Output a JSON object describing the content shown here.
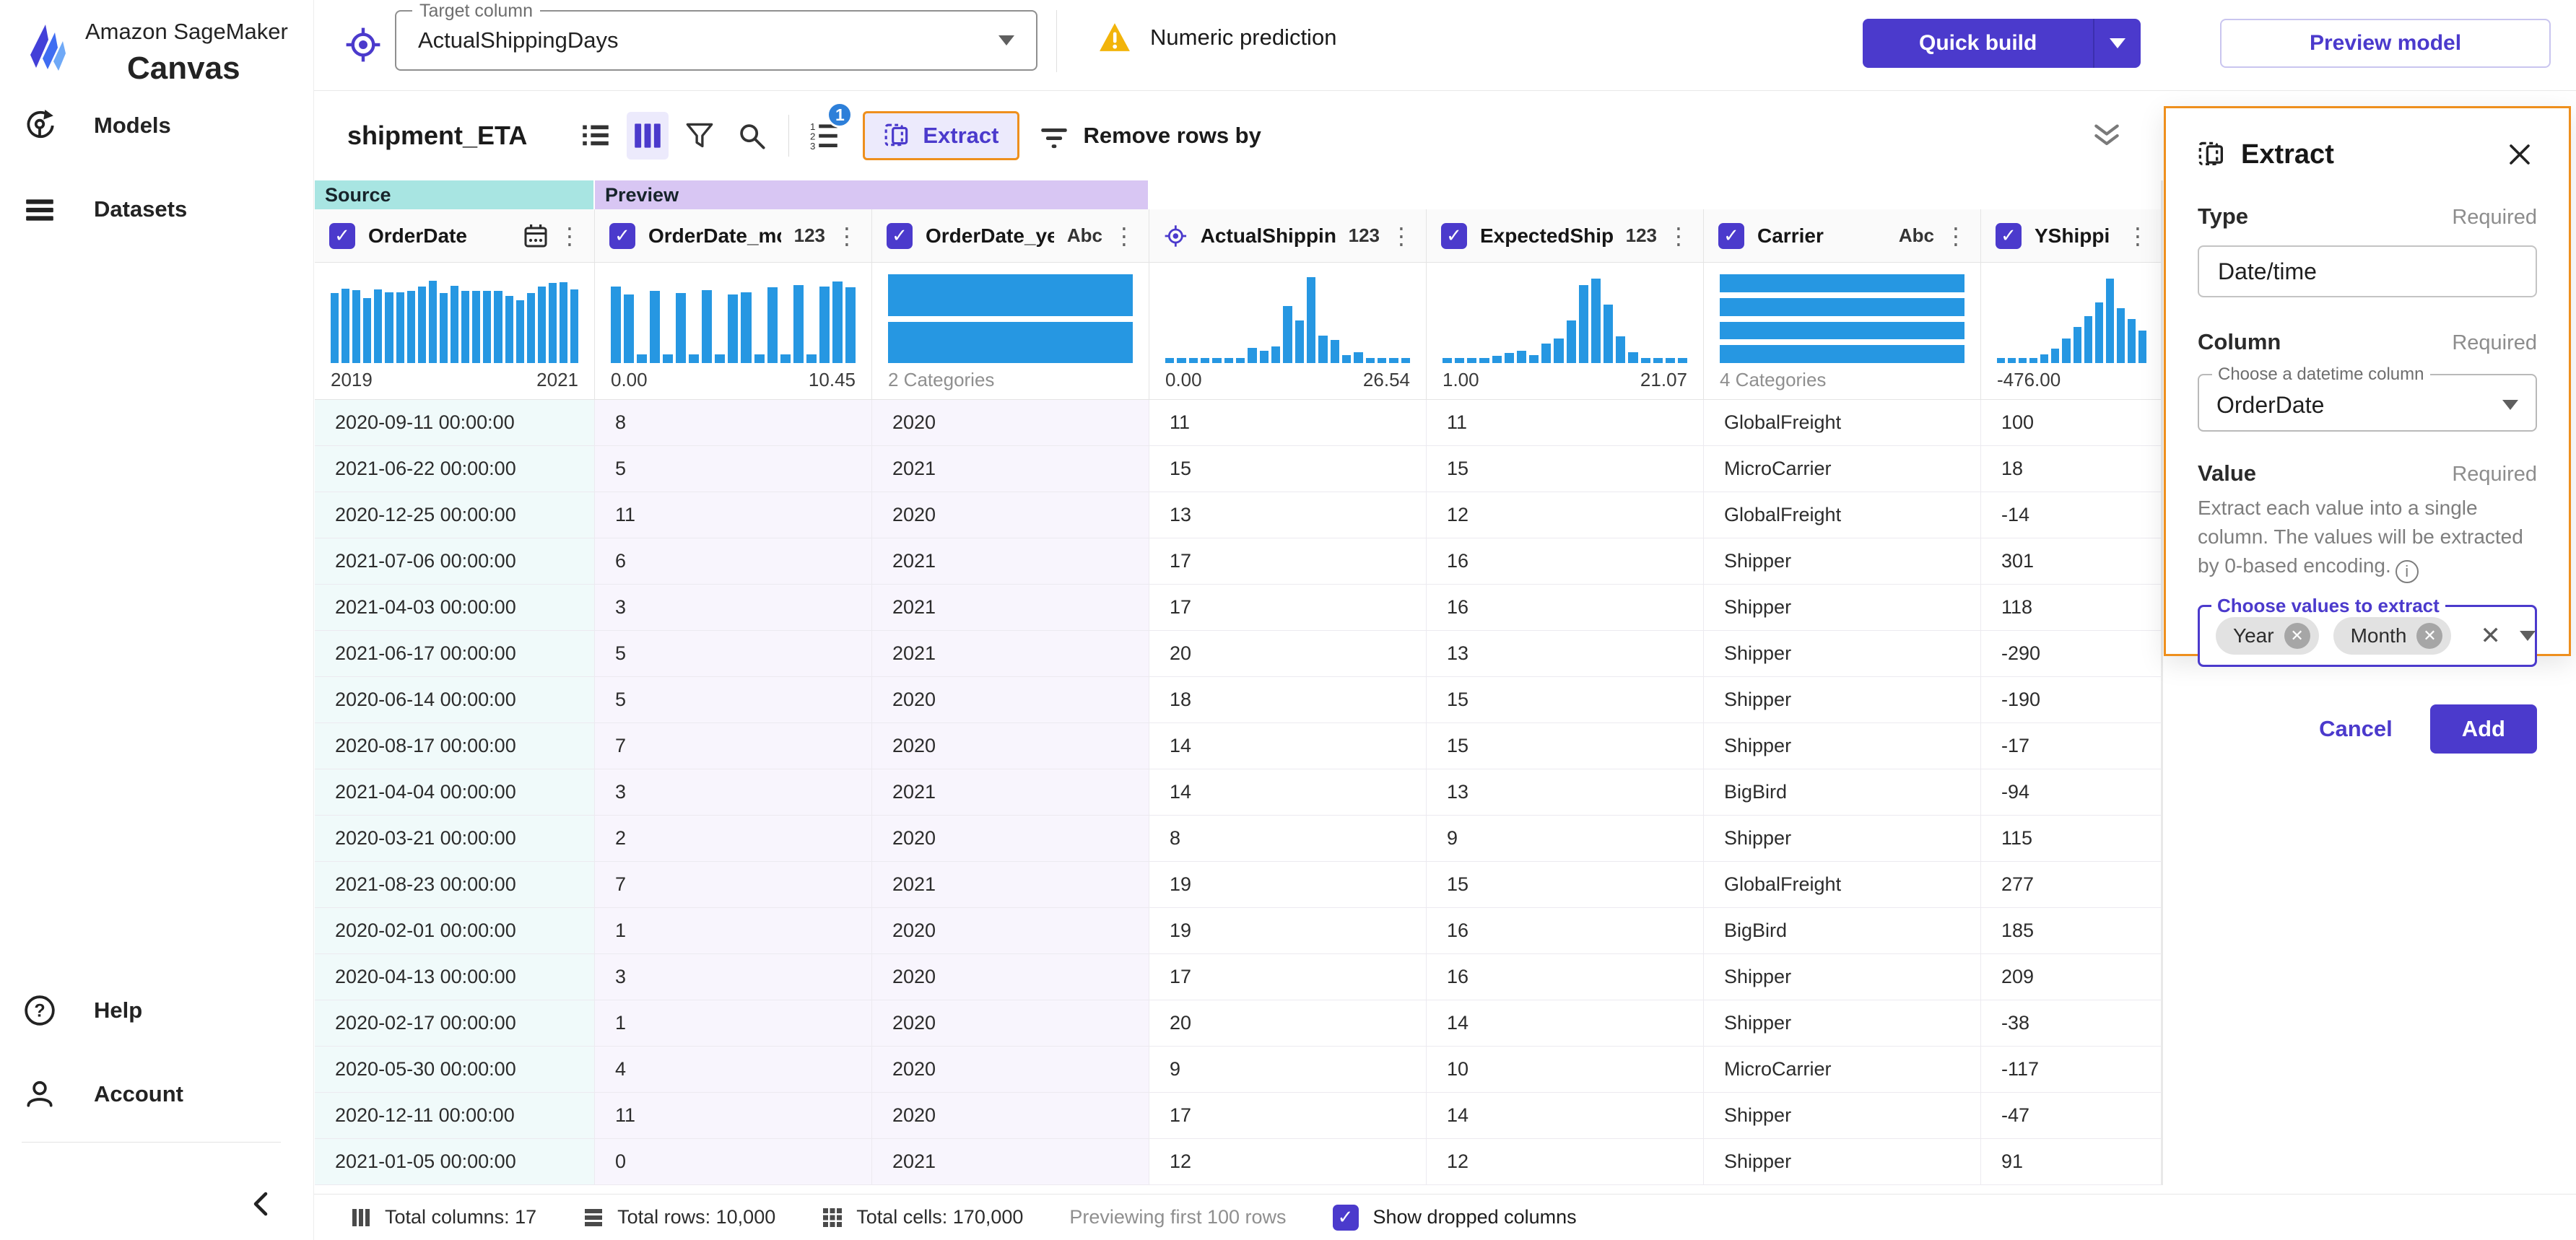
{
  "colors": {
    "primary": "#4b3acc",
    "orange": "#ee8f1d",
    "hist_bar": "#2697e2",
    "source_band": "#a8e5e2",
    "preview_band": "#d8c6f3",
    "source_cell": "#f0fafa",
    "preview_cell": "#f8f5fd",
    "badge_blue": "#2d7fd9",
    "warning": "#f2b40a"
  },
  "sidebar": {
    "brand_line1": "Amazon SageMaker",
    "brand_line2": "Canvas",
    "items": [
      {
        "label": "Models"
      },
      {
        "label": "Datasets"
      }
    ],
    "footer_items": [
      {
        "label": "Help"
      },
      {
        "label": "Account"
      }
    ]
  },
  "topbar": {
    "target_column_label": "Target column",
    "target_column_value": "ActualShippingDays",
    "model_type": "Numeric prediction",
    "quick_build_label": "Quick build",
    "preview_model_label": "Preview model"
  },
  "toolbar": {
    "dataset_name": "shipment_ETA",
    "badge_count": "1",
    "extract_label": "Extract",
    "remove_rows_label": "Remove rows by"
  },
  "table": {
    "bands": {
      "source": "Source",
      "preview": "Preview"
    },
    "columns": [
      {
        "name": "OrderDate",
        "selector": "checkbox",
        "type_badge": "calendar",
        "band": "source",
        "hist": {
          "kind": "vbar",
          "values": [
            79,
            84,
            82,
            73,
            83,
            80,
            80,
            81,
            86,
            93,
            79,
            87,
            81,
            81,
            81,
            81,
            76,
            71,
            79,
            86,
            90,
            91,
            83
          ],
          "left_label": "2019",
          "right_label": "2021"
        }
      },
      {
        "name": "OrderDate_mo...",
        "selector": "checkbox",
        "type_badge": "123",
        "band": "preview",
        "hist": {
          "kind": "vbar",
          "values": [
            86,
            77,
            10,
            81,
            10,
            79,
            10,
            82,
            10,
            77,
            80,
            10,
            85,
            10,
            88,
            10,
            86,
            92,
            85
          ],
          "left_label": "0.00",
          "right_label": "10.45"
        }
      },
      {
        "name": "OrderDate_year",
        "selector": "checkbox",
        "type_badge": "Abc",
        "band": "preview",
        "hist": {
          "kind": "hbar",
          "bars": 2,
          "label": "2 Categories"
        }
      },
      {
        "name": "ActualShipping...",
        "selector": "target",
        "type_badge": "123",
        "band": null,
        "hist": {
          "kind": "vbar",
          "values": [
            6,
            6,
            6,
            6,
            6,
            6,
            6,
            17,
            14,
            19,
            64,
            48,
            97,
            31,
            26,
            9,
            12,
            6,
            6,
            6,
            6
          ],
          "left_label": "0.00",
          "right_label": "26.54"
        }
      },
      {
        "name": "ExpectedShippi...",
        "selector": "checkbox",
        "type_badge": "123",
        "band": null,
        "hist": {
          "kind": "vbar",
          "values": [
            6,
            6,
            6,
            6,
            8,
            11,
            14,
            9,
            22,
            28,
            48,
            88,
            95,
            66,
            30,
            12,
            6,
            6,
            6,
            6
          ],
          "left_label": "1.00",
          "right_label": "21.07"
        }
      },
      {
        "name": "Carrier",
        "selector": "checkbox",
        "type_badge": "Abc",
        "band": null,
        "hist": {
          "kind": "hbar",
          "bars": 4,
          "label": "4 Categories"
        }
      },
      {
        "name": "YShippingDista...",
        "selector": "checkbox",
        "type_badge": "",
        "band": null,
        "hist": {
          "kind": "vbar",
          "values": [
            6,
            6,
            6,
            6,
            10,
            16,
            28,
            41,
            53,
            68,
            95,
            62,
            50,
            37
          ],
          "left_label": "-476.00",
          "right_label": ""
        }
      }
    ],
    "rows": [
      [
        "2020-09-11 00:00:00",
        "8",
        "2020",
        "11",
        "11",
        "GlobalFreight",
        "100"
      ],
      [
        "2021-06-22 00:00:00",
        "5",
        "2021",
        "15",
        "15",
        "MicroCarrier",
        "18"
      ],
      [
        "2020-12-25 00:00:00",
        "11",
        "2020",
        "13",
        "12",
        "GlobalFreight",
        "-14"
      ],
      [
        "2021-07-06 00:00:00",
        "6",
        "2021",
        "17",
        "16",
        "Shipper",
        "301"
      ],
      [
        "2021-04-03 00:00:00",
        "3",
        "2021",
        "17",
        "16",
        "Shipper",
        "118"
      ],
      [
        "2021-06-17 00:00:00",
        "5",
        "2021",
        "20",
        "13",
        "Shipper",
        "-290"
      ],
      [
        "2020-06-14 00:00:00",
        "5",
        "2020",
        "18",
        "15",
        "Shipper",
        "-190"
      ],
      [
        "2020-08-17 00:00:00",
        "7",
        "2020",
        "14",
        "15",
        "Shipper",
        "-17"
      ],
      [
        "2021-04-04 00:00:00",
        "3",
        "2021",
        "14",
        "13",
        "BigBird",
        "-94"
      ],
      [
        "2020-03-21 00:00:00",
        "2",
        "2020",
        "8",
        "9",
        "Shipper",
        "115"
      ],
      [
        "2021-08-23 00:00:00",
        "7",
        "2021",
        "19",
        "15",
        "GlobalFreight",
        "277"
      ],
      [
        "2020-02-01 00:00:00",
        "1",
        "2020",
        "19",
        "16",
        "BigBird",
        "185"
      ],
      [
        "2020-04-13 00:00:00",
        "3",
        "2020",
        "17",
        "16",
        "Shipper",
        "209"
      ],
      [
        "2020-02-17 00:00:00",
        "1",
        "2020",
        "20",
        "14",
        "Shipper",
        "-38"
      ],
      [
        "2020-05-30 00:00:00",
        "4",
        "2020",
        "9",
        "10",
        "MicroCarrier",
        "-117"
      ],
      [
        "2020-12-11 00:00:00",
        "11",
        "2020",
        "17",
        "14",
        "Shipper",
        "-47"
      ],
      [
        "2021-01-05 00:00:00",
        "0",
        "2021",
        "12",
        "12",
        "Shipper",
        "91"
      ]
    ]
  },
  "statusbar": {
    "items": [
      {
        "icon": "columns",
        "label": "Total columns: 17"
      },
      {
        "icon": "rows",
        "label": "Total rows: 10,000"
      },
      {
        "icon": "cells",
        "label": "Total cells: 170,000"
      },
      {
        "icon": "",
        "label": "Previewing first 100 rows"
      }
    ],
    "show_dropped_label": "Show dropped columns"
  },
  "extract_panel": {
    "title": "Extract",
    "type_label": "Type",
    "type_required": "Required",
    "type_value": "Date/time",
    "column_label": "Column",
    "column_required": "Required",
    "column_legend": "Choose a datetime column",
    "column_value": "OrderDate",
    "value_label": "Value",
    "value_required": "Required",
    "value_description": "Extract each value into a single column. The values will be extracted by 0-based encoding.",
    "values_legend": "Choose values to extract",
    "tags": [
      "Year",
      "Month"
    ],
    "cancel_label": "Cancel",
    "add_label": "Add"
  }
}
